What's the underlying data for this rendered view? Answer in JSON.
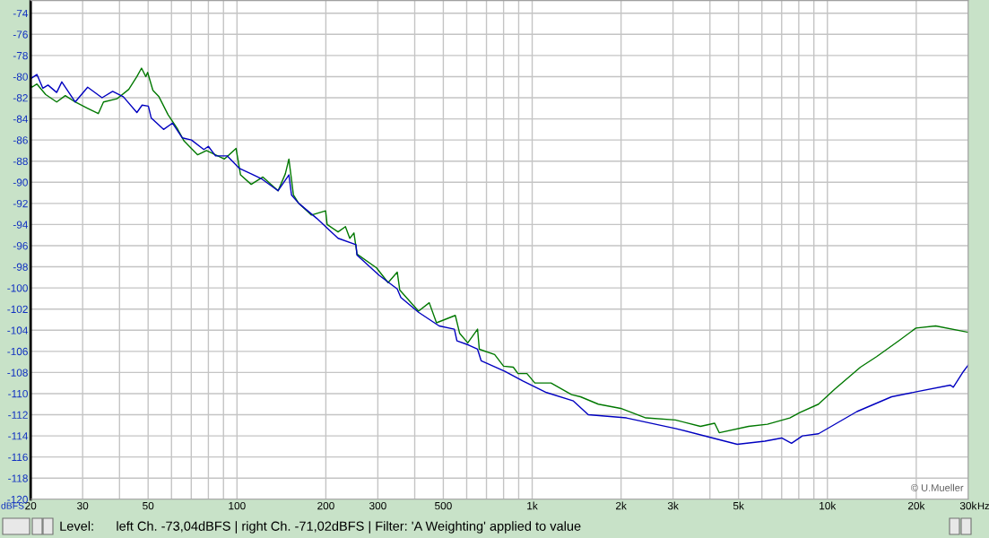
{
  "chart_data": {
    "type": "line",
    "ylabel": "dBFS",
    "log": "x",
    "grid": true,
    "xlim": [
      20,
      30000
    ],
    "ylim": [
      -120,
      -72.8
    ],
    "xticks": [
      {
        "value": 20,
        "label": "20"
      },
      30,
      {
        "value": 40,
        "label": null
      },
      50,
      {
        "value": 60,
        "label": null
      },
      {
        "value": 70,
        "label": null
      },
      {
        "value": 80,
        "label": null
      },
      {
        "value": 90,
        "label": null
      },
      100,
      200,
      300,
      {
        "value": 400,
        "label": null
      },
      500,
      {
        "value": 600,
        "label": null
      },
      {
        "value": 700,
        "label": null
      },
      {
        "value": 800,
        "label": null
      },
      {
        "value": 900,
        "label": null
      },
      {
        "value": 1000,
        "label": "1k"
      },
      {
        "value": 2000,
        "label": "2k"
      },
      {
        "value": 3000,
        "label": "3k"
      },
      {
        "value": 4000,
        "label": null
      },
      {
        "value": 5000,
        "label": "5k"
      },
      {
        "value": 6000,
        "label": null
      },
      {
        "value": 7000,
        "label": null
      },
      {
        "value": 8000,
        "label": null
      },
      {
        "value": 9000,
        "label": null
      },
      {
        "value": 10000,
        "label": "10k"
      },
      {
        "value": 20000,
        "label": "20k"
      },
      {
        "value": 30000,
        "label": "30k"
      }
    ],
    "yticks": [
      -120,
      -118,
      -116,
      -114,
      -112,
      -110,
      -108,
      -106,
      -104,
      -102,
      -100,
      -98,
      -96,
      -94,
      -92,
      -90,
      -88,
      -86,
      -84,
      -82,
      -80,
      -78,
      -76,
      -74
    ],
    "xlabel": "Hz",
    "annotations": [
      "Level:      left Ch. -73,04dBFS | right Ch. -71,02dBFS | Filter: 'A Weighting' applied to value",
      "© U.Mueller"
    ],
    "series": [
      {
        "color": "#007800",
        "x": [
          20,
          20.2,
          21,
          22.5,
          24.5,
          26.2,
          28.3,
          31.2,
          33.9,
          35.3,
          39.2,
          43,
          45.8,
          47.5,
          49.1,
          49.8,
          51.9,
          54.4,
          58.4,
          62.7,
          66.2,
          73.6,
          78.8,
          90.7,
          99.3,
          102.8,
          111.7,
          122.4,
          137.8,
          145.8,
          149.9,
          155.3,
          161.9,
          178.5,
          199.6,
          202,
          220,
          233,
          241,
          249,
          255,
          297,
          325,
          349,
          356,
          412,
          448,
          474,
          549,
          568,
          605,
          653,
          662,
          746,
          800,
          863,
          895,
          960,
          1021,
          1158,
          1360,
          1458,
          1675,
          1995,
          2427,
          3055,
          3715,
          4150,
          4300,
          5410,
          6265,
          7460,
          8060,
          9330,
          10570,
          12940,
          14680,
          17460,
          19950,
          23270,
          30000
        ],
        "values": [
          -80.8,
          -81.0,
          -80.7,
          -81.7,
          -82.4,
          -81.8,
          -82.4,
          -83.0,
          -83.5,
          -82.4,
          -82.1,
          -81.2,
          -80.0,
          -79.2,
          -80.0,
          -79.6,
          -81.3,
          -81.9,
          -83.6,
          -84.9,
          -86.1,
          -87.4,
          -87.0,
          -87.8,
          -86.8,
          -89.3,
          -90.2,
          -89.5,
          -90.8,
          -89.2,
          -87.8,
          -91.2,
          -92.0,
          -93.1,
          -92.7,
          -94.0,
          -94.7,
          -94.2,
          -95.3,
          -94.8,
          -96.8,
          -98.1,
          -99.5,
          -98.5,
          -100.2,
          -102.2,
          -101.4,
          -103.3,
          -102.6,
          -104.3,
          -105.2,
          -103.9,
          -105.8,
          -106.3,
          -107.4,
          -107.5,
          -108.1,
          -108.1,
          -109.0,
          -109.0,
          -110.1,
          -110.3,
          -111.0,
          -111.4,
          -112.3,
          -112.5,
          -113.1,
          -112.8,
          -113.7,
          -113.1,
          -112.9,
          -112.3,
          -111.8,
          -111.0,
          -109.6,
          -107.5,
          -106.5,
          -105.0,
          -103.8,
          -103.6,
          -104.2
        ]
      },
      {
        "color": "#0000c0",
        "x": [
          20,
          21,
          22,
          22.9,
          24.5,
          25.5,
          28.3,
          31.2,
          34.9,
          37.9,
          41.2,
          45.8,
          47.7,
          50.1,
          51.2,
          56.4,
          60.5,
          65.3,
          70.1,
          77.2,
          80,
          84.6,
          92.6,
          102,
          111.7,
          121.5,
          137.8,
          149.9,
          153,
          162,
          186,
          220,
          253,
          255,
          303,
          349,
          359,
          412,
          484,
          545,
          556,
          609,
          653,
          672,
          808,
          930,
          1118,
          1379,
          1549,
          2085,
          3055,
          4090,
          4950,
          6140,
          7000,
          7560,
          8230,
          9330,
          12590,
          16500,
          20220,
          26100,
          26700,
          28900,
          30000
        ],
        "values": [
          -80.2,
          -79.8,
          -81.1,
          -80.8,
          -81.5,
          -80.5,
          -82.4,
          -81.0,
          -82.0,
          -81.4,
          -81.9,
          -83.4,
          -82.7,
          -82.8,
          -83.9,
          -85.0,
          -84.4,
          -85.8,
          -86.0,
          -86.9,
          -86.6,
          -87.5,
          -87.5,
          -88.7,
          -89.2,
          -89.7,
          -90.8,
          -89.3,
          -91.2,
          -92.0,
          -93.4,
          -95.3,
          -95.9,
          -96.9,
          -98.8,
          -100.1,
          -100.9,
          -102.3,
          -103.6,
          -103.9,
          -105.0,
          -105.4,
          -105.8,
          -106.9,
          -107.9,
          -108.8,
          -109.9,
          -110.7,
          -112.0,
          -112.3,
          -113.3,
          -114.2,
          -114.8,
          -114.5,
          -114.2,
          -114.7,
          -114.0,
          -113.8,
          -111.7,
          -110.3,
          -109.8,
          -109.2,
          -109.4,
          -107.9,
          -107.3
        ]
      }
    ]
  }
}
